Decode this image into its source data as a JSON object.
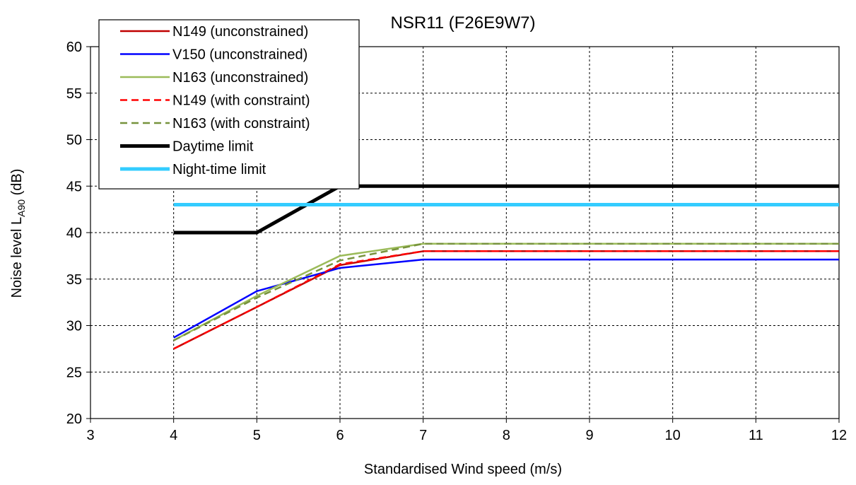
{
  "chart_data": {
    "type": "line",
    "title": "NSR11 (F26E9W7)",
    "xlabel": "Standardised Wind speed (m/s)",
    "ylabel": {
      "prefix": "Noise level L",
      "subscript": "A90",
      "suffix": " (dB)"
    },
    "xlim": [
      3,
      12
    ],
    "ylim": [
      20,
      60
    ],
    "xticks": [
      3,
      4,
      5,
      6,
      7,
      8,
      9,
      10,
      11,
      12
    ],
    "yticks": [
      20,
      25,
      30,
      35,
      40,
      45,
      50,
      55,
      60
    ],
    "grid": true,
    "legend_position": "top-left",
    "series": [
      {
        "name": "N149 (unconstrained)",
        "color": "#c00000",
        "style": "solid",
        "width": "normal",
        "x": [
          4,
          5,
          6,
          7,
          8,
          9,
          10,
          11,
          12
        ],
        "y": [
          27.5,
          32.0,
          36.5,
          38.0,
          38.0,
          38.0,
          38.0,
          38.0,
          38.0
        ]
      },
      {
        "name": "V150 (unconstrained)",
        "color": "#0000ff",
        "style": "solid",
        "width": "normal",
        "x": [
          4,
          5,
          6,
          7,
          8,
          9,
          10,
          11,
          12
        ],
        "y": [
          28.7,
          33.7,
          36.2,
          37.1,
          37.1,
          37.1,
          37.1,
          37.1,
          37.1
        ]
      },
      {
        "name": "N163 (unconstrained)",
        "color": "#9bbb59",
        "style": "solid",
        "width": "normal",
        "x": [
          4,
          5,
          6,
          7,
          8,
          9,
          10,
          11,
          12
        ],
        "y": [
          28.4,
          33.2,
          37.5,
          38.8,
          38.8,
          38.8,
          38.8,
          38.8,
          38.8
        ]
      },
      {
        "name": "N149 (with constraint)",
        "color": "#ff0000",
        "style": "dashed",
        "width": "normal",
        "x": [
          4,
          5,
          6,
          7,
          8,
          9,
          10,
          11,
          12
        ],
        "y": [
          27.5,
          32.0,
          36.6,
          38.0,
          38.0,
          38.0,
          38.0,
          38.0,
          38.0
        ]
      },
      {
        "name": "N163 (with constraint)",
        "color": "#77933c",
        "style": "dashed",
        "width": "normal",
        "x": [
          4,
          5,
          6,
          7,
          8,
          9,
          10,
          11,
          12
        ],
        "y": [
          28.4,
          33.0,
          37.0,
          38.8,
          38.8,
          38.8,
          38.8,
          38.8,
          38.8
        ]
      },
      {
        "name": "Daytime limit",
        "color": "#000000",
        "style": "solid",
        "width": "thick",
        "x": [
          4,
          5,
          6,
          7,
          8,
          9,
          10,
          11,
          12
        ],
        "y": [
          40,
          40,
          45,
          45,
          45,
          45,
          45,
          45,
          45
        ]
      },
      {
        "name": "Night-time limit",
        "color": "#33ccff",
        "style": "solid",
        "width": "thick",
        "x": [
          4,
          5,
          6,
          7,
          8,
          9,
          10,
          11,
          12
        ],
        "y": [
          43,
          43,
          43,
          43,
          43,
          43,
          43,
          43,
          43
        ]
      }
    ]
  }
}
